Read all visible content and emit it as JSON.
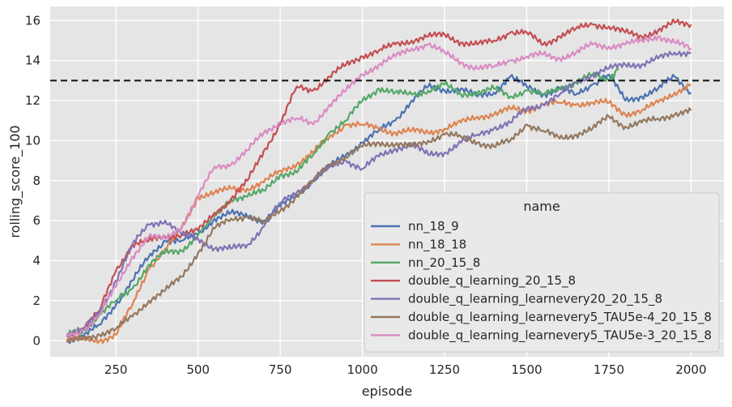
{
  "chart_data": {
    "type": "line",
    "title": "",
    "xlabel": "episode",
    "ylabel": "rolling_score_100",
    "xlim": [
      50,
      2100
    ],
    "ylim": [
      -0.8,
      16.7
    ],
    "xticks": [
      250,
      500,
      750,
      1000,
      1250,
      1500,
      1750,
      2000
    ],
    "yticks": [
      0,
      2,
      4,
      6,
      8,
      10,
      12,
      14,
      16
    ],
    "grid": true,
    "background": "#e5e5e5",
    "grid_color": "#ffffff",
    "reference_line": {
      "y": 13,
      "style": "dashed",
      "color": "#111111"
    },
    "legend": {
      "title": "name",
      "placement": "lower-right"
    },
    "series": [
      {
        "name": "nn_18_9",
        "color": "#4c72b0",
        "x": [
          100,
          150,
          200,
          250,
          300,
          350,
          400,
          450,
          500,
          550,
          600,
          650,
          700,
          750,
          800,
          850,
          900,
          950,
          1000,
          1050,
          1100,
          1150,
          1200,
          1250,
          1300,
          1350,
          1400,
          1450,
          1500,
          1550,
          1600,
          1650,
          1700,
          1750,
          1800,
          1850,
          1900,
          1950,
          2000
        ],
        "y": [
          0.0,
          0.2,
          0.8,
          1.8,
          3.0,
          4.2,
          5.0,
          5.0,
          5.3,
          6.1,
          6.4,
          6.2,
          6.0,
          6.7,
          7.3,
          8.0,
          8.7,
          9.3,
          9.9,
          10.5,
          11.0,
          12.0,
          12.7,
          12.5,
          12.6,
          12.2,
          12.4,
          13.2,
          12.7,
          12.3,
          12.6,
          12.3,
          12.8,
          13.3,
          12.0,
          12.2,
          12.6,
          13.2,
          12.4
        ]
      },
      {
        "name": "nn_18_18",
        "color": "#dd8452",
        "x": [
          100,
          150,
          200,
          250,
          300,
          350,
          400,
          450,
          500,
          550,
          600,
          650,
          700,
          750,
          800,
          850,
          900,
          950,
          1000,
          1050,
          1100,
          1150,
          1200,
          1250,
          1300,
          1350,
          1400,
          1450,
          1500,
          1550,
          1600,
          1650,
          1700,
          1750,
          1800,
          1850,
          1900,
          1950,
          2000
        ],
        "y": [
          0.0,
          0.1,
          0.0,
          0.3,
          1.8,
          3.6,
          4.6,
          5.6,
          7.2,
          7.4,
          7.6,
          7.6,
          7.9,
          8.5,
          8.8,
          9.4,
          10.2,
          10.8,
          10.8,
          10.6,
          10.4,
          10.5,
          10.4,
          10.6,
          10.9,
          11.2,
          11.3,
          11.6,
          11.5,
          11.8,
          11.9,
          11.8,
          11.9,
          11.9,
          11.3,
          11.5,
          11.9,
          12.4,
          12.8
        ]
      },
      {
        "name": "nn_20_15_8",
        "color": "#55a868",
        "x": [
          100,
          150,
          200,
          250,
          300,
          350,
          400,
          450,
          500,
          550,
          600,
          650,
          700,
          750,
          800,
          850,
          900,
          950,
          1000,
          1050,
          1100,
          1150,
          1200,
          1250,
          1300,
          1350,
          1400,
          1450,
          1500,
          1550,
          1600,
          1650,
          1700,
          1750,
          1780
        ],
        "y": [
          0.3,
          0.5,
          1.3,
          2.0,
          2.6,
          3.8,
          4.4,
          4.5,
          5.3,
          6.2,
          7.1,
          7.2,
          7.5,
          8.3,
          8.4,
          9.3,
          10.4,
          11.0,
          12.0,
          12.6,
          12.4,
          12.3,
          12.5,
          12.8,
          12.3,
          12.4,
          12.6,
          12.2,
          12.5,
          12.3,
          12.6,
          12.9,
          13.3,
          13.0,
          13.6
        ]
      },
      {
        "name": "double_q_learning_20_15_8",
        "color": "#c44e52",
        "x": [
          100,
          150,
          200,
          250,
          300,
          350,
          400,
          450,
          500,
          550,
          600,
          650,
          700,
          750,
          800,
          850,
          900,
          950,
          1000,
          1050,
          1100,
          1150,
          1200,
          1250,
          1300,
          1350,
          1400,
          1450,
          1500,
          1550,
          1600,
          1650,
          1700,
          1750,
          1800,
          1850,
          1900,
          1950,
          2000
        ],
        "y": [
          0.2,
          0.6,
          1.5,
          3.5,
          4.8,
          5.0,
          5.2,
          5.3,
          5.5,
          6.4,
          7.0,
          8.0,
          9.5,
          10.8,
          12.7,
          12.5,
          13.2,
          13.8,
          14.2,
          14.5,
          14.8,
          15.0,
          15.2,
          15.3,
          14.9,
          14.8,
          15.0,
          15.4,
          15.4,
          14.8,
          15.2,
          15.6,
          15.8,
          15.7,
          15.4,
          15.2,
          15.5,
          15.9,
          15.8
        ]
      },
      {
        "name": "double_q_learning_learnevery20_20_15_8",
        "color": "#8172b3",
        "x": [
          100,
          150,
          200,
          250,
          300,
          350,
          400,
          450,
          500,
          550,
          600,
          650,
          700,
          750,
          800,
          850,
          900,
          950,
          1000,
          1050,
          1100,
          1150,
          1200,
          1250,
          1300,
          1350,
          1400,
          1450,
          1500,
          1550,
          1600,
          1650,
          1700,
          1750,
          1800,
          1850,
          1900,
          1950,
          2000
        ],
        "y": [
          0.3,
          0.6,
          1.4,
          3.0,
          4.8,
          5.8,
          6.0,
          5.3,
          5.1,
          4.6,
          4.6,
          4.8,
          5.7,
          6.9,
          7.4,
          8.0,
          8.7,
          9.0,
          8.6,
          9.2,
          9.6,
          9.8,
          9.3,
          9.4,
          9.9,
          10.3,
          10.6,
          10.9,
          11.6,
          11.8,
          12.3,
          12.9,
          13.3,
          13.6,
          13.8,
          13.8,
          14.1,
          14.4,
          14.4
        ]
      },
      {
        "name": "double_q_learning_learnevery5_TAU5e-4_20_15_8",
        "color": "#937860",
        "x": [
          100,
          150,
          200,
          250,
          300,
          350,
          400,
          450,
          500,
          550,
          600,
          650,
          700,
          750,
          800,
          850,
          900,
          950,
          1000,
          1050,
          1100,
          1150,
          1200,
          1250,
          1300,
          1350,
          1400,
          1450,
          1500,
          1550,
          1600,
          1650,
          1700,
          1750,
          1800,
          1850,
          1900,
          1950,
          2000
        ],
        "y": [
          0.0,
          0.1,
          0.3,
          0.6,
          1.2,
          2.0,
          2.5,
          3.2,
          4.4,
          5.6,
          6.1,
          6.2,
          5.9,
          6.5,
          7.2,
          8.0,
          8.8,
          9.2,
          9.7,
          9.9,
          9.8,
          9.7,
          10.0,
          10.3,
          10.2,
          9.9,
          9.7,
          10.0,
          10.8,
          10.5,
          10.1,
          10.3,
          10.6,
          11.2,
          10.7,
          10.9,
          11.1,
          11.3,
          11.5
        ]
      },
      {
        "name": "double_q_learning_learnevery5_TAU5e-3_20_15_8",
        "color": "#da8bc3",
        "x": [
          100,
          150,
          200,
          250,
          300,
          350,
          400,
          450,
          500,
          550,
          600,
          650,
          700,
          750,
          800,
          850,
          900,
          950,
          1000,
          1050,
          1100,
          1150,
          1200,
          1250,
          1300,
          1350,
          1400,
          1450,
          1500,
          1550,
          1600,
          1650,
          1700,
          1750,
          1800,
          1850,
          1900,
          1950,
          2000
        ],
        "y": [
          0.2,
          0.5,
          1.3,
          2.7,
          4.2,
          5.2,
          5.1,
          5.7,
          7.2,
          8.7,
          8.8,
          9.5,
          10.4,
          10.9,
          11.1,
          10.8,
          11.8,
          12.5,
          13.3,
          13.8,
          14.2,
          14.6,
          14.8,
          14.4,
          13.9,
          13.6,
          13.7,
          14.0,
          14.2,
          14.3,
          14.1,
          14.4,
          14.8,
          14.7,
          14.8,
          15.0,
          15.2,
          14.9,
          14.6
        ]
      }
    ]
  }
}
